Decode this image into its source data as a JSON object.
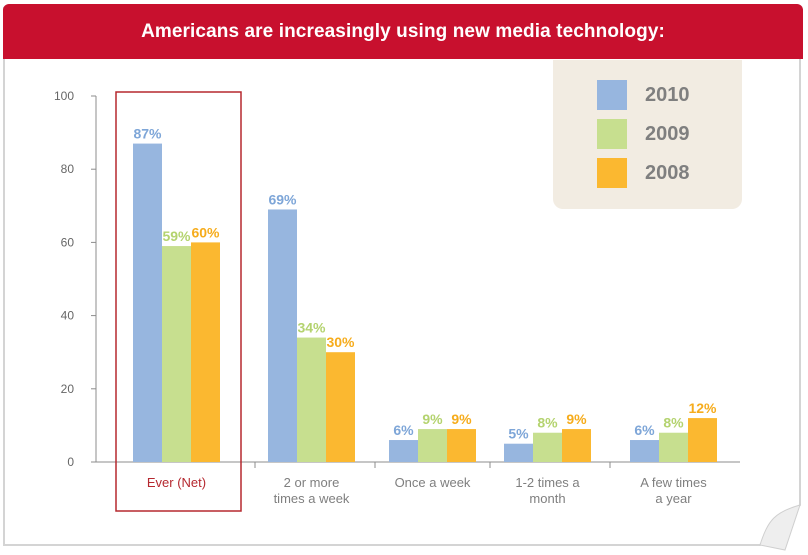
{
  "title": "Americans are increasingly using new media technology:",
  "colors": {
    "header": "#c8102e",
    "highlight_border": "#b5282f",
    "series": [
      "#97b6df",
      "#c7df8f",
      "#fbb830"
    ],
    "label_colors": [
      "#7ea6d8",
      "#b4d36f",
      "#f6ac1c"
    ]
  },
  "chart_data": {
    "type": "bar",
    "title": "Americans are increasingly using new media technology:",
    "categories": [
      "Ever (Net)",
      "2 or more times a week",
      "Once a week",
      "1-2 times a month",
      "A few times a year"
    ],
    "category_lines": [
      [
        "Ever (Net)"
      ],
      [
        "2 or more",
        "times a week"
      ],
      [
        "Once a week"
      ],
      [
        "1-2 times a",
        "month"
      ],
      [
        "A few times",
        "a year"
      ]
    ],
    "series": [
      {
        "name": "2010",
        "values": [
          87,
          69,
          6,
          5,
          6
        ],
        "labels": [
          "87%",
          "69%",
          "6%",
          "5%",
          "6%"
        ]
      },
      {
        "name": "2009",
        "values": [
          59,
          34,
          9,
          8,
          8
        ],
        "labels": [
          "59%",
          "34%",
          "9%",
          "8%",
          "8%"
        ]
      },
      {
        "name": "2008",
        "values": [
          60,
          30,
          9,
          9,
          12
        ],
        "labels": [
          "60%",
          "30%",
          "9%",
          "9%",
          "12%"
        ]
      }
    ],
    "yticks": [
      0,
      20,
      40,
      60,
      80,
      100
    ],
    "ylim": [
      0,
      100
    ],
    "xlabel": "",
    "ylabel": "",
    "legend": "top-right",
    "highlighted_category": "Ever (Net)"
  }
}
